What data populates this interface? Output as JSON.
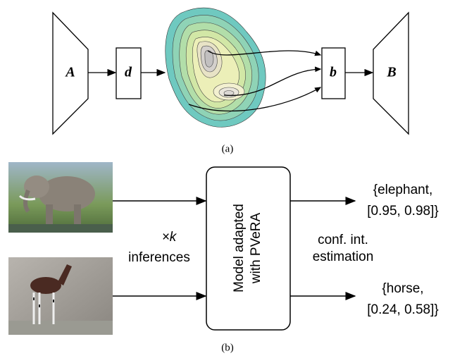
{
  "panel_a": {
    "encoder": "A",
    "input": "d",
    "output": "b",
    "decoder": "B",
    "caption": "(a)"
  },
  "panel_b": {
    "model": [
      "Model adapted",
      "with PVeRA"
    ],
    "repeat": "×k",
    "repeat_note": "inferences",
    "estimation": [
      "conf. int.",
      "estimation"
    ],
    "outputs": [
      [
        "{elephant,",
        "[0.95, 0.98]}"
      ],
      [
        "{horse,",
        "[0.24, 0.58]}"
      ]
    ],
    "caption": "(b)"
  }
}
